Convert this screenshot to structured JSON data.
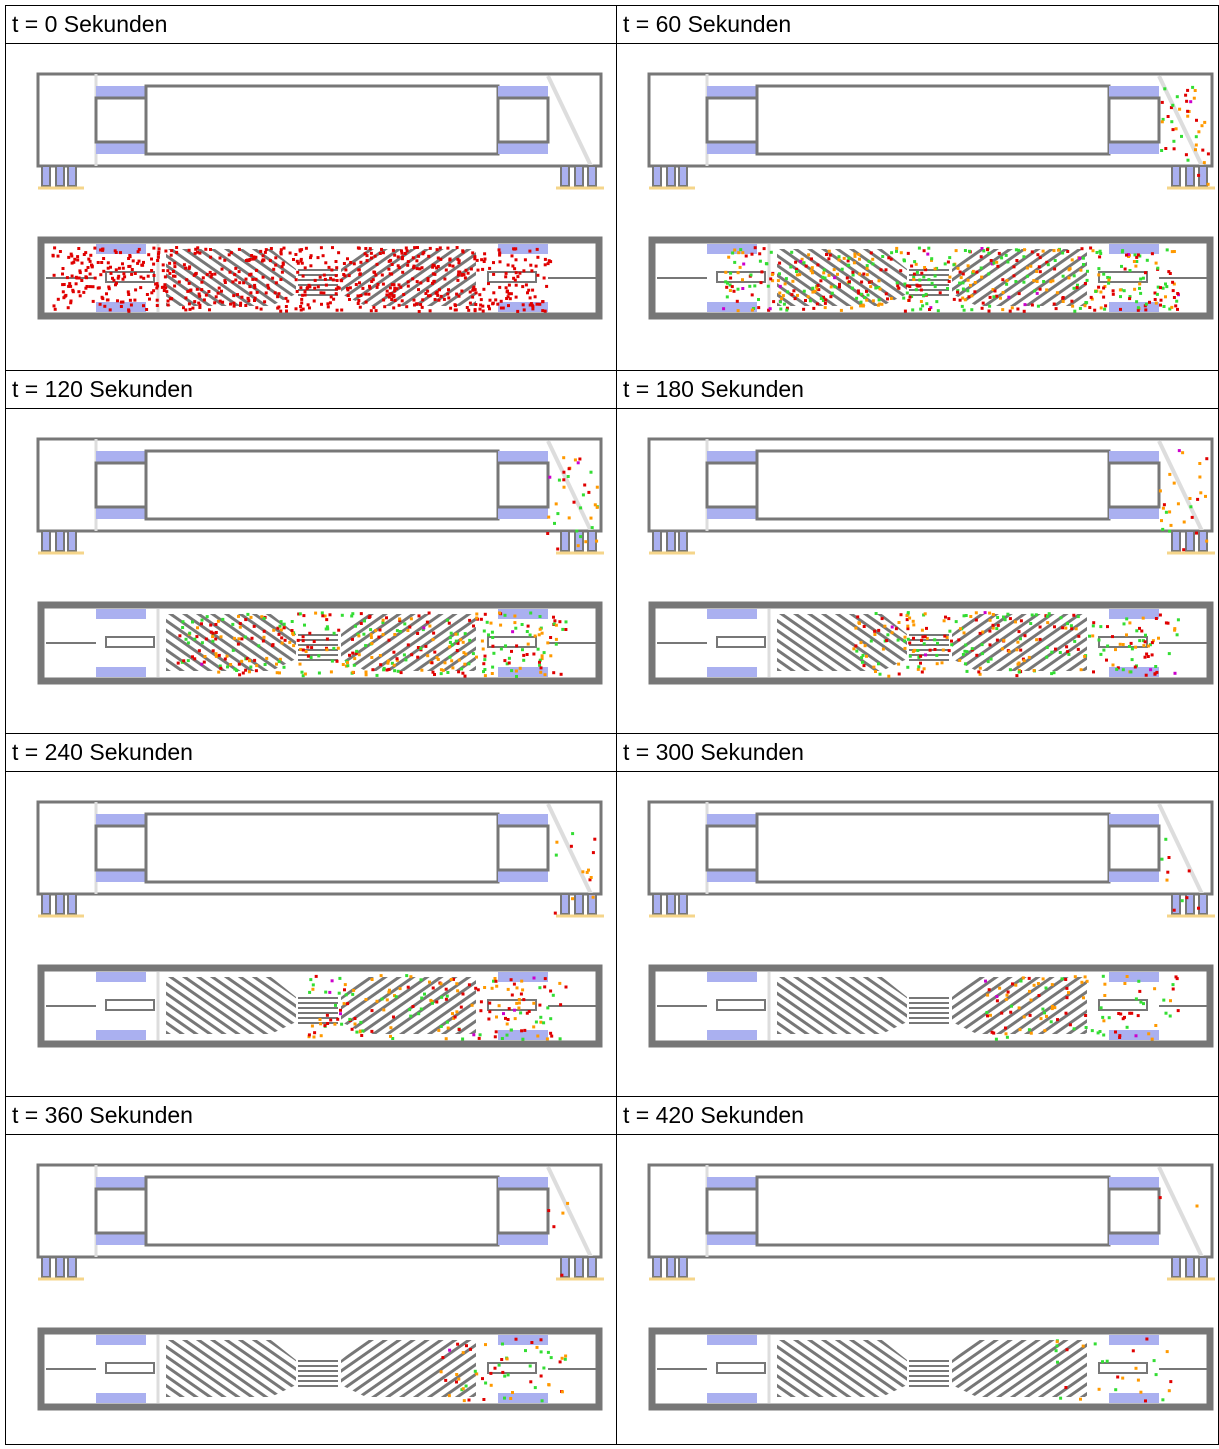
{
  "table": {
    "rows": [
      [
        "t = 0 Sekunden",
        "t = 60 Sekunden"
      ],
      [
        "t = 120 Sekunden",
        "t = 180 Sekunden"
      ],
      [
        "t = 240 Sekunden",
        "t = 300 Sekunden"
      ],
      [
        "t = 360 Sekunden",
        "t = 420 Sekunden"
      ]
    ]
  }
}
